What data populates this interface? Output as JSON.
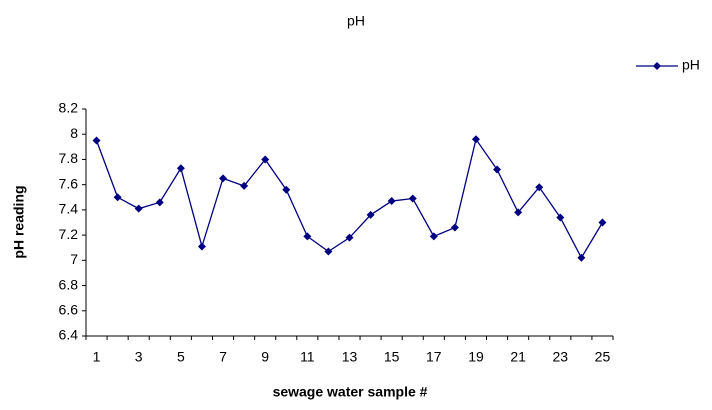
{
  "chart_data": {
    "type": "line",
    "title": "pH",
    "x_label": "sewage water sample #",
    "y_label": "pH reading",
    "categories": [
      1,
      null,
      3,
      null,
      5,
      null,
      7,
      null,
      9,
      null,
      11,
      null,
      13,
      null,
      15,
      null,
      17,
      null,
      19,
      null,
      21,
      null,
      23,
      null,
      25
    ],
    "series": [
      {
        "name": "pH",
        "color": "#000080",
        "values": [
          7.95,
          7.5,
          7.41,
          7.46,
          7.73,
          7.11,
          7.65,
          7.59,
          7.8,
          7.56,
          7.19,
          7.07,
          7.18,
          7.36,
          7.47,
          7.49,
          7.19,
          7.26,
          7.96,
          7.72,
          7.38,
          7.58,
          7.34,
          7.02,
          7.3
        ]
      }
    ],
    "ylim": [
      6.4,
      8.2
    ],
    "yticks": [
      6.4,
      6.6,
      6.8,
      7,
      7.2,
      7.4,
      7.6,
      7.8,
      8,
      8.2
    ],
    "grid": false,
    "legend": "upper right"
  }
}
